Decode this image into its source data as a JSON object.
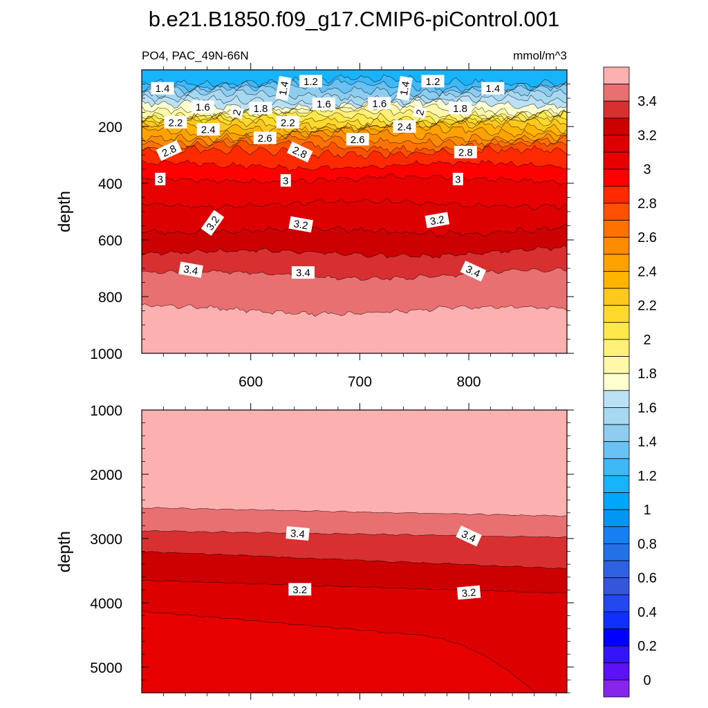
{
  "title": "b.e21.B1850.f09_g17.CMIP6-piControl.001",
  "chart_data": [
    {
      "type": "contour",
      "panel": "upper",
      "left_label": "PO4, PAC_49N-66N",
      "right_label": "mmol/m^3",
      "ylabel": "depth",
      "xlabel": "",
      "xlim": [
        500,
        890
      ],
      "ylim": [
        1000,
        0
      ],
      "xticks": [
        600,
        700,
        800
      ],
      "yticks": [
        200,
        400,
        600,
        800,
        1000
      ],
      "approx_contour_depths": [
        {
          "level": 1.2,
          "depth": 40
        },
        {
          "level": 1.4,
          "depth": 70
        },
        {
          "level": 1.6,
          "depth": 110
        },
        {
          "level": 1.8,
          "depth": 140
        },
        {
          "level": 2.0,
          "depth": 165
        },
        {
          "level": 2.2,
          "depth": 190
        },
        {
          "level": 2.4,
          "depth": 215
        },
        {
          "level": 2.6,
          "depth": 250
        },
        {
          "level": 2.8,
          "depth": 290
        },
        {
          "level": 3.0,
          "depth": 385
        },
        {
          "level": 3.2,
          "depth": 560
        },
        {
          "level": 3.4,
          "depth": 715
        },
        {
          "level": 3.5,
          "depth": 840
        }
      ],
      "contour_labels": [
        {
          "text": "1.4",
          "x": 519,
          "depth": 65,
          "angle": 0
        },
        {
          "text": "1.2",
          "x": 655,
          "depth": 40,
          "angle": 0
        },
        {
          "text": "1.4",
          "x": 630,
          "depth": 65,
          "angle": -80
        },
        {
          "text": "1.4",
          "x": 741,
          "depth": 65,
          "angle": -80
        },
        {
          "text": "1.2",
          "x": 767,
          "depth": 40,
          "angle": 0
        },
        {
          "text": "1.4",
          "x": 822,
          "depth": 65,
          "angle": 0
        },
        {
          "text": "1.6",
          "x": 556,
          "depth": 130,
          "angle": 0
        },
        {
          "text": "2",
          "x": 587,
          "depth": 150,
          "angle": -75
        },
        {
          "text": "1.8",
          "x": 609,
          "depth": 135,
          "angle": 0
        },
        {
          "text": "1.6",
          "x": 667,
          "depth": 120,
          "angle": 0
        },
        {
          "text": "1.6",
          "x": 718,
          "depth": 118,
          "angle": 0
        },
        {
          "text": "2",
          "x": 755,
          "depth": 150,
          "angle": -75
        },
        {
          "text": "1.8",
          "x": 792,
          "depth": 135,
          "angle": 0
        },
        {
          "text": "2.2",
          "x": 531,
          "depth": 185,
          "angle": 0
        },
        {
          "text": "2.4",
          "x": 561,
          "depth": 210,
          "angle": 0
        },
        {
          "text": "2.2",
          "x": 634,
          "depth": 185,
          "angle": 0
        },
        {
          "text": "2.4",
          "x": 741,
          "depth": 200,
          "angle": 0
        },
        {
          "text": "2.6",
          "x": 613,
          "depth": 240,
          "angle": 0
        },
        {
          "text": "2.6",
          "x": 698,
          "depth": 245,
          "angle": 0
        },
        {
          "text": "2.8",
          "x": 525,
          "depth": 285,
          "angle": -25
        },
        {
          "text": "2.8",
          "x": 645,
          "depth": 290,
          "angle": 25
        },
        {
          "text": "2.8",
          "x": 797,
          "depth": 290,
          "angle": 0
        },
        {
          "text": "3",
          "x": 517,
          "depth": 385,
          "angle": 0
        },
        {
          "text": "3",
          "x": 632,
          "depth": 390,
          "angle": 0
        },
        {
          "text": "3",
          "x": 790,
          "depth": 385,
          "angle": 0
        },
        {
          "text": "3.2",
          "x": 565,
          "depth": 540,
          "angle": -55
        },
        {
          "text": "3.2",
          "x": 646,
          "depth": 545,
          "angle": 10
        },
        {
          "text": "3.2",
          "x": 771,
          "depth": 530,
          "angle": -10
        },
        {
          "text": "3.4",
          "x": 545,
          "depth": 705,
          "angle": 10
        },
        {
          "text": "3.4",
          "x": 648,
          "depth": 715,
          "angle": 0
        },
        {
          "text": "3.4",
          "x": 804,
          "depth": 710,
          "angle": 25
        }
      ]
    },
    {
      "type": "contour",
      "panel": "lower",
      "ylabel": "depth",
      "xlabel": "",
      "xlim": [
        500,
        890
      ],
      "ylim": [
        5400,
        1000
      ],
      "yticks": [
        1000,
        2000,
        3000,
        4000,
        5000
      ],
      "approx_contour_depths": [
        {
          "level": 3.5,
          "depth_left": 2520,
          "depth_right": 2650
        },
        {
          "level": 3.4,
          "depth_left": 2880,
          "depth_right": 2980
        },
        {
          "level": 3.3,
          "depth_left": 3200,
          "depth_right": 3470
        },
        {
          "level": 3.2,
          "depth_left": 3650,
          "depth_right": 3850
        },
        {
          "level": 3.1,
          "depth_left": 4130,
          "depth_right": 5400
        }
      ],
      "contour_labels": [
        {
          "text": "3.4",
          "x": 643,
          "depth": 2920,
          "angle": 5
        },
        {
          "text": "3.4",
          "x": 800,
          "depth": 2960,
          "angle": 25
        },
        {
          "text": "3.2",
          "x": 645,
          "depth": 3790,
          "angle": 0
        },
        {
          "text": "3.2",
          "x": 800,
          "depth": 3840,
          "angle": -5
        }
      ]
    }
  ],
  "colorbar": {
    "min": -0.1,
    "max": 3.6,
    "step": 0.1,
    "labels": [
      "0",
      "0.2",
      "0.4",
      "0.6",
      "0.8",
      "1",
      "1.2",
      "1.4",
      "1.6",
      "1.8",
      "2",
      "2.2",
      "2.4",
      "2.6",
      "2.8",
      "3",
      "3.2",
      "3.4"
    ],
    "colors": {
      "3.5": "#fcb0b0",
      "3.4": "#e87070",
      "3.3": "#d83030",
      "3.2": "#cc0000",
      "3.1": "#dc0000",
      "3.0": "#e60000",
      "2.9": "#ff0000",
      "2.8": "#ff2a00",
      "2.7": "#ff5000",
      "2.6": "#ff7200",
      "2.5": "#ff8c00",
      "2.4": "#ffa200",
      "2.3": "#ffb400",
      "2.2": "#ffc81e",
      "2.1": "#ffda2c",
      "2.0": "#ffe84a",
      "1.9": "#fff07a",
      "1.8": "#fff8a8",
      "1.7": "#ffffd0",
      "1.6": "#bce0f5",
      "1.5": "#a6d8f2",
      "1.4": "#8ecdf0",
      "1.3": "#6ac1f4",
      "1.2": "#3fb8f8",
      "1.1": "#18b4fb",
      "1.0": "#00a6fa",
      "0.9": "#0096f4",
      "0.8": "#1680f0",
      "0.7": "#2470e6",
      "0.6": "#2e62e2",
      "0.5": "#3456dc",
      "0.4": "#2448f0",
      "0.3": "#1030ff",
      "0.2": "#0000ff",
      "0.1": "#3414f8",
      "0.0": "#5c12f4",
      "-0.1": "#8626ec"
    }
  }
}
